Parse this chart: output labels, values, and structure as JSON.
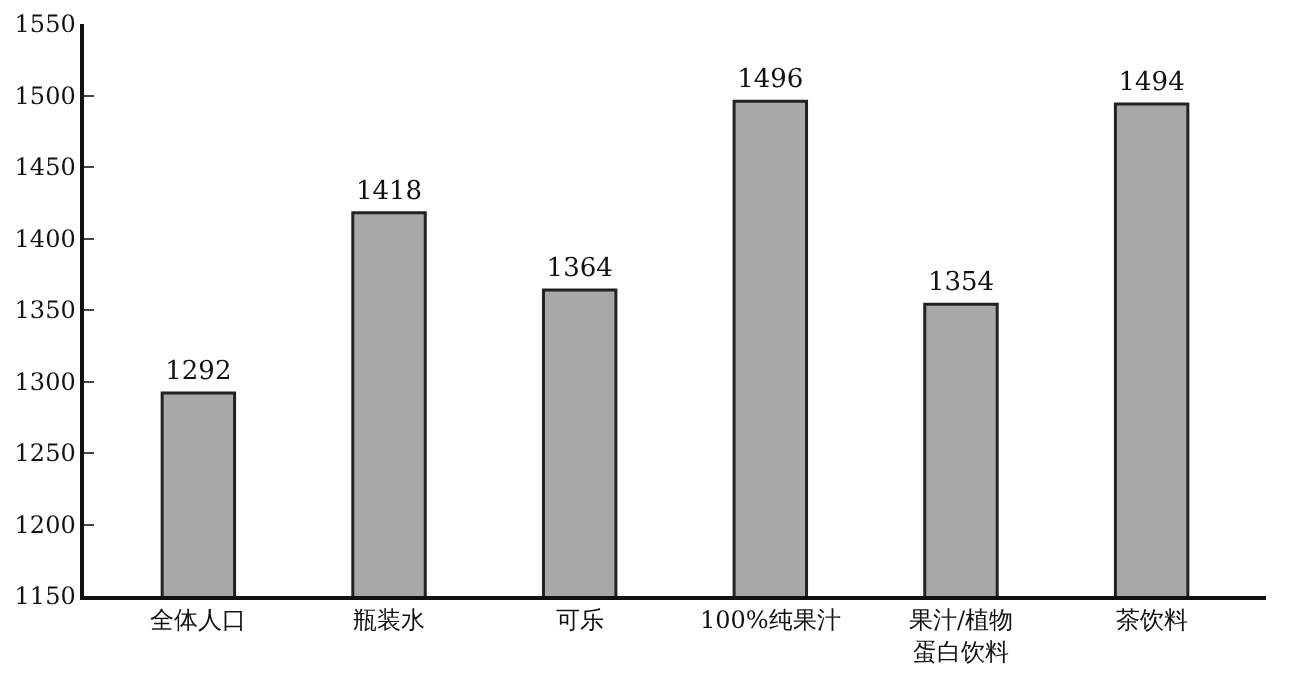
{
  "chart_data": {
    "type": "bar",
    "categories": [
      "全体人口",
      "瓶装水",
      "可乐",
      "100%纯果汁",
      "果汁/植物蛋白饮料",
      "茶饮料"
    ],
    "values": [
      1292,
      1418,
      1364,
      1496,
      1354,
      1494
    ],
    "color": "#a8a8a8",
    "ylim": [
      1150,
      1550
    ],
    "yticks": [
      1150,
      1200,
      1250,
      1300,
      1350,
      1400,
      1450,
      1500,
      1550
    ],
    "data_labels": true,
    "grid": false,
    "legend": false
  }
}
